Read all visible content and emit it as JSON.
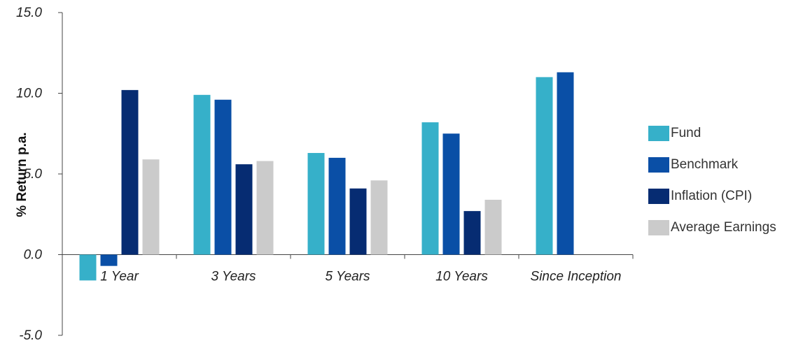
{
  "chart_data": {
    "type": "bar",
    "ylabel": "% Return p.a.",
    "ylim": [
      -5,
      15
    ],
    "yticks": [
      "15.0",
      "10.0",
      "5.0",
      "0.0",
      "-5.0"
    ],
    "ytick_values": [
      15,
      10,
      5,
      0,
      -5
    ],
    "categories": [
      "1 Year",
      "3 Years",
      "5 Years",
      "10 Years",
      "Since Inception"
    ],
    "series": [
      {
        "name": "Fund",
        "color": "#36B0C9",
        "values": [
          -1.6,
          9.9,
          6.3,
          8.2,
          11.0
        ]
      },
      {
        "name": "Benchmark",
        "color": "#0A4FA6",
        "values": [
          -0.7,
          9.6,
          6.0,
          7.5,
          11.3
        ]
      },
      {
        "name": "Inflation (CPI)",
        "color": "#062C72",
        "values": [
          10.2,
          5.6,
          4.1,
          2.7,
          null
        ]
      },
      {
        "name": "Average Earnings",
        "color": "#CBCBCB",
        "values": [
          5.9,
          5.8,
          4.6,
          3.4,
          null
        ]
      }
    ],
    "legend_position": "right",
    "grid": false
  }
}
